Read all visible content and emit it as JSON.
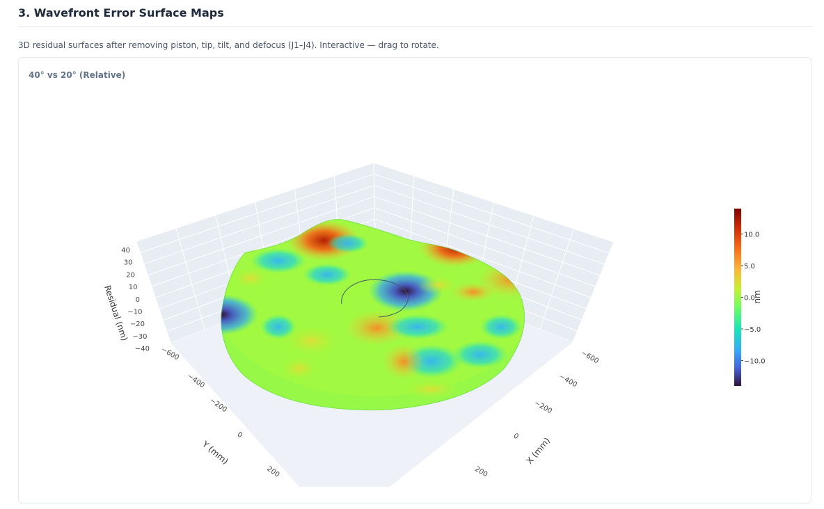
{
  "section": {
    "title": "3. Wavefront Error Surface Maps",
    "description": "3D residual surfaces after removing piston, tip, tilt, and defocus (J1–J4). Interactive — drag to rotate."
  },
  "chart_data": {
    "type": "surface",
    "title": "40° vs 20° (Relative)",
    "colorscale": "turbo",
    "x_axis": {
      "title": "X (mm)",
      "ticks": [
        "−600",
        "−400",
        "−200",
        "0",
        "200"
      ]
    },
    "y_axis": {
      "title": "Y (mm)",
      "ticks": [
        "−600",
        "−400",
        "−200",
        "0",
        "200"
      ]
    },
    "z_axis": {
      "title": "Residual (nm)",
      "ticks": [
        "40",
        "30",
        "20",
        "10",
        "0",
        "−10",
        "−20",
        "−30",
        "−40"
      ],
      "range": [
        -40,
        40
      ]
    },
    "colorbar": {
      "title": "nm",
      "range": [
        -14,
        14
      ],
      "ticks": [
        "10.0",
        "5.0",
        "0.0",
        "−5.0",
        "−10.0"
      ],
      "tick_values": [
        10,
        5,
        0,
        -5,
        -10
      ]
    },
    "features": [
      {
        "name": "peak",
        "x": -520,
        "y": -300,
        "z": 13
      },
      {
        "name": "peak",
        "x": -200,
        "y": -560,
        "z": 12
      },
      {
        "name": "peak",
        "x": 80,
        "y": -520,
        "z": 10
      },
      {
        "name": "peak",
        "x": 40,
        "y": 40,
        "z": 9
      },
      {
        "name": "peak",
        "x": -50,
        "y": 240,
        "z": 7
      },
      {
        "name": "valley",
        "x": -560,
        "y": 120,
        "z": -13
      },
      {
        "name": "valley",
        "x": -280,
        "y": -420,
        "z": -13
      },
      {
        "name": "valley",
        "x": 200,
        "y": -40,
        "z": -8
      }
    ]
  }
}
